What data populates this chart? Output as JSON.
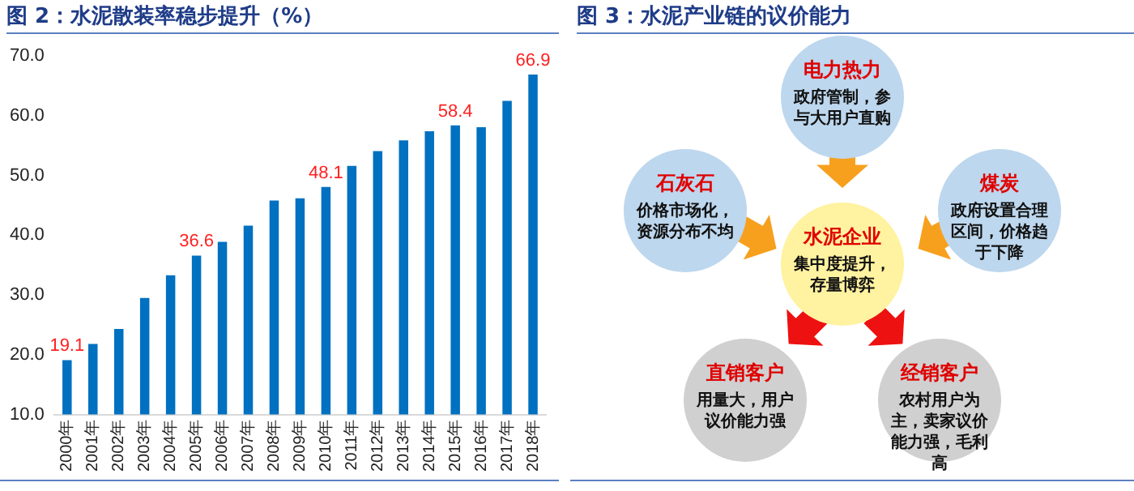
{
  "chart_data": [
    {
      "type": "bar",
      "title": "图 2：水泥散装率稳步提升（%）",
      "categories": [
        "2000年",
        "2001年",
        "2002年",
        "2003年",
        "2004年",
        "2005年",
        "2006年",
        "2007年",
        "2008年",
        "2009年",
        "2010年",
        "2011年",
        "2012年",
        "2013年",
        "2014年",
        "2015年",
        "2016年",
        "2017年",
        "2018年"
      ],
      "values": [
        19.1,
        21.8,
        24.3,
        29.5,
        33.3,
        36.6,
        38.9,
        41.6,
        45.8,
        46.2,
        48.1,
        51.6,
        54.1,
        55.9,
        57.4,
        58.4,
        58.1,
        62.5,
        66.9
      ],
      "value_labels": [
        "19.1",
        null,
        null,
        null,
        null,
        "36.6",
        null,
        null,
        null,
        null,
        "48.1",
        null,
        null,
        null,
        null,
        "58.4",
        null,
        null,
        "66.9"
      ],
      "color": "#0070c0",
      "ylim": [
        10,
        70
      ],
      "yticks": [
        {
          "value": 10,
          "label": "10.0"
        },
        {
          "value": 20,
          "label": "20.0"
        },
        {
          "value": 30,
          "label": "30.0"
        },
        {
          "value": 40,
          "label": "40.0"
        },
        {
          "value": 50,
          "label": "50.0"
        },
        {
          "value": 60,
          "label": "60.0"
        },
        {
          "value": 70,
          "label": "70.0"
        }
      ],
      "grid": false,
      "legend": false
    },
    {
      "type": "other",
      "title": "图 3：水泥产业链的议价能力",
      "annotations": [
        "电力热力",
        "政府管制，参与大用户直购",
        "石灰石",
        "价格市场化，资源分布不均",
        "煤炭",
        "政府设置合理区间，价格趋于下降",
        "水泥企业",
        "集中度提升，存量博弈",
        "直销客户",
        "用量大，用户议价能力强",
        "经销客户",
        "农村用户为主，卖家议价能力强，毛利高"
      ]
    }
  ]
}
